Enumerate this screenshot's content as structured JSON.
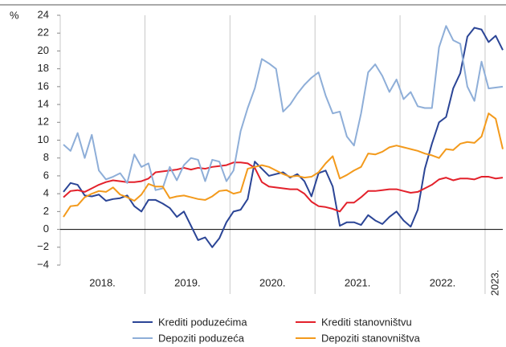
{
  "chart_data": {
    "type": "line",
    "y_unit": "%",
    "year_labels": [
      "2018.",
      "2019.",
      "2020.",
      "2021.",
      "2022.",
      "2023."
    ],
    "ylim": [
      -4,
      24
    ],
    "yticks": [
      {
        "value": -4,
        "label": "−4"
      },
      {
        "value": -2,
        "label": "−2"
      },
      0,
      2,
      4,
      6,
      8,
      10,
      12,
      14,
      16,
      18,
      20,
      22,
      24
    ],
    "series": [
      {
        "name": "Krediti poduzećima",
        "color": "#2b4596",
        "values": [
          4.2,
          5.2,
          5.0,
          3.8,
          3.7,
          3.9,
          3.2,
          3.4,
          3.5,
          3.8,
          2.6,
          2.0,
          3.3,
          3.3,
          2.9,
          2.4,
          1.4,
          2.0,
          0.4,
          -1.2,
          -0.9,
          -2.0,
          -1.0,
          0.8,
          2.0,
          2.2,
          3.4,
          7.6,
          6.8,
          6.0,
          6.2,
          6.4,
          5.8,
          6.2,
          5.4,
          3.7,
          6.3,
          6.6,
          4.8,
          0.4,
          0.8,
          0.8,
          0.5,
          1.6,
          1.0,
          0.6,
          1.4,
          2.0,
          1.0,
          0.3,
          2.2,
          6.8,
          9.6,
          12.0,
          12.6,
          15.8,
          17.5,
          21.6,
          22.6,
          22.4,
          21.0,
          21.7,
          20.1
        ]
      },
      {
        "name": "Krediti stanovništvu",
        "color": "#e3212b",
        "values": [
          3.6,
          4.3,
          4.4,
          4.2,
          4.6,
          5.0,
          5.3,
          5.5,
          5.4,
          5.3,
          5.3,
          5.4,
          5.7,
          6.4,
          6.5,
          6.6,
          6.7,
          6.9,
          6.7,
          6.9,
          6.8,
          7.0,
          7.1,
          7.2,
          7.5,
          7.5,
          7.4,
          6.9,
          5.3,
          4.8,
          4.7,
          4.6,
          4.5,
          4.5,
          4.0,
          3.1,
          2.6,
          2.5,
          2.3,
          2.0,
          3.0,
          3.0,
          3.6,
          4.3,
          4.3,
          4.4,
          4.5,
          4.5,
          4.3,
          4.1,
          4.2,
          4.6,
          5.0,
          5.6,
          5.8,
          5.5,
          5.7,
          5.7,
          5.6,
          5.9,
          5.9,
          5.7,
          5.8
        ]
      },
      {
        "name": "Depoziti poduzeća",
        "color": "#8eaed8",
        "values": [
          9.5,
          8.8,
          10.8,
          8.0,
          10.6,
          6.6,
          5.6,
          5.9,
          6.3,
          5.2,
          8.4,
          7.0,
          7.4,
          4.4,
          4.6,
          7.0,
          5.5,
          7.2,
          8.0,
          7.8,
          5.4,
          7.8,
          7.6,
          5.4,
          6.6,
          11.0,
          13.6,
          15.8,
          19.1,
          18.6,
          18.0,
          13.2,
          14.0,
          15.2,
          16.2,
          17.0,
          17.6,
          15.0,
          13.0,
          13.2,
          10.4,
          9.4,
          13.0,
          17.6,
          18.5,
          17.2,
          15.4,
          16.8,
          14.6,
          15.4,
          13.8,
          13.6,
          13.6,
          20.4,
          22.8,
          21.2,
          20.8,
          16.0,
          14.4,
          18.8,
          15.8,
          15.9,
          16.0
        ]
      },
      {
        "name": "Depoziti stanovništva",
        "color": "#f39a1c",
        "values": [
          1.4,
          2.6,
          2.7,
          3.6,
          4.0,
          4.3,
          4.2,
          4.7,
          3.9,
          3.6,
          3.2,
          3.9,
          5.1,
          4.8,
          4.8,
          3.5,
          3.7,
          3.8,
          3.6,
          3.4,
          3.3,
          3.7,
          4.3,
          4.4,
          4.0,
          4.2,
          6.8,
          7.0,
          7.2,
          7.0,
          6.6,
          6.2,
          5.9,
          6.0,
          5.8,
          5.9,
          6.4,
          7.4,
          8.2,
          5.7,
          6.1,
          6.6,
          7.0,
          8.5,
          8.4,
          8.7,
          9.2,
          9.4,
          9.2,
          9.0,
          8.8,
          8.5,
          8.3,
          8.0,
          9.0,
          8.9,
          9.6,
          9.8,
          9.7,
          10.4,
          13.0,
          12.4,
          9.0
        ]
      }
    ]
  }
}
